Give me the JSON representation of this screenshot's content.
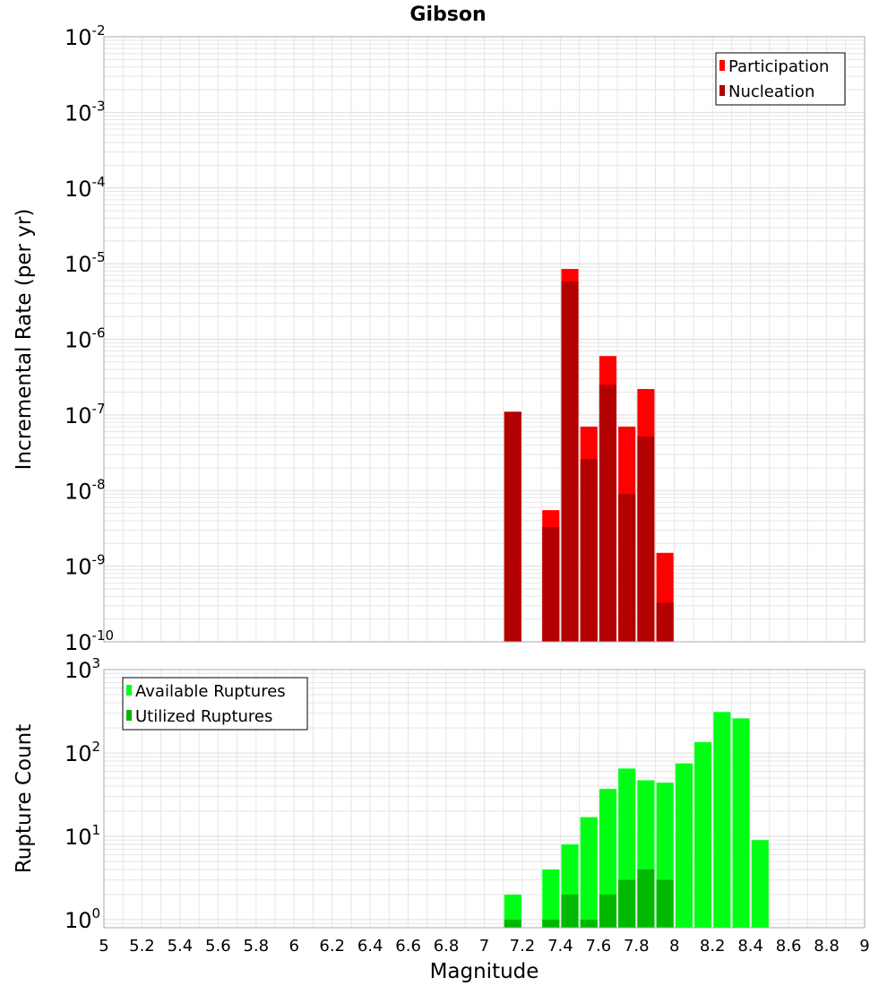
{
  "chart_data": [
    {
      "type": "bar",
      "title": "Gibson",
      "ylabel": "Incremental Rate (per yr)",
      "xlabel": "",
      "xlim": [
        5,
        9
      ],
      "ylim": [
        1e-10,
        0.01
      ],
      "yscale": "log",
      "y_ticks_exp": [
        -10,
        -9,
        -8,
        -7,
        -6,
        -5,
        -4,
        -3,
        -2
      ],
      "grid": true,
      "legend_position": "top-right",
      "bar_width": 0.09,
      "series": [
        {
          "name": "Participation",
          "color": "#ff0000",
          "x": [
            7.15,
            7.35,
            7.45,
            7.55,
            7.65,
            7.75,
            7.85,
            7.95
          ],
          "values": [
            1.1e-07,
            5.5e-09,
            8.5e-06,
            7e-08,
            6e-07,
            7e-08,
            2.2e-07,
            1.5e-09
          ]
        },
        {
          "name": "Nucleation",
          "color": "#b30000",
          "x": [
            7.15,
            7.35,
            7.45,
            7.55,
            7.65,
            7.75,
            7.85,
            7.95
          ],
          "values": [
            1.1e-07,
            3.3e-09,
            5.8e-06,
            2.6e-08,
            2.5e-07,
            9e-09,
            5.2e-08,
            3.3e-10
          ]
        }
      ]
    },
    {
      "type": "bar",
      "title": "",
      "ylabel": "Rupture Count",
      "xlabel": "Magnitude",
      "xlim": [
        5,
        9
      ],
      "x_ticks": [
        "5",
        "5.2",
        "5.4",
        "5.6",
        "5.8",
        "6",
        "6.2",
        "6.4",
        "6.6",
        "6.8",
        "7",
        "7.2",
        "7.4",
        "7.6",
        "7.8",
        "8",
        "8.2",
        "8.4",
        "8.6",
        "8.8",
        "9"
      ],
      "ylim": [
        0.8,
        1000
      ],
      "yscale": "log",
      "y_ticks_exp": [
        0,
        1,
        2,
        3
      ],
      "grid": true,
      "legend_position": "top-left",
      "bar_width": 0.09,
      "series": [
        {
          "name": "Available Ruptures",
          "color": "#00ff14",
          "x": [
            7.15,
            7.35,
            7.45,
            7.55,
            7.65,
            7.75,
            7.85,
            7.95,
            8.05,
            8.15,
            8.25,
            8.35,
            8.45
          ],
          "values": [
            2,
            4,
            8,
            17,
            37,
            65,
            47,
            44,
            75,
            135,
            310,
            260,
            9
          ]
        },
        {
          "name": "Utilized Ruptures",
          "color": "#00b800",
          "x": [
            7.15,
            7.35,
            7.45,
            7.55,
            7.65,
            7.75,
            7.85,
            7.95
          ],
          "values": [
            1,
            1,
            2,
            1,
            2,
            3,
            4,
            3
          ]
        }
      ]
    }
  ]
}
